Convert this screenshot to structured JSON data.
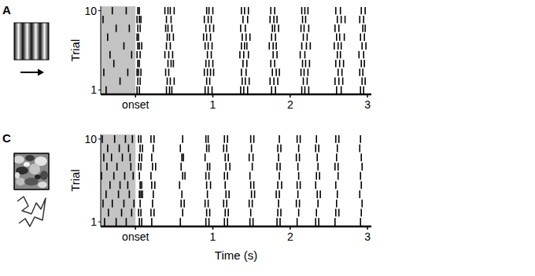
{
  "chart_data": [
    {
      "type": "raster",
      "title": "A",
      "ylabel": "Trial",
      "xlim": [
        -0.45,
        3.05
      ],
      "xticks": [
        {
          "value": 0,
          "label": "onset"
        },
        1,
        2,
        3
      ],
      "ylim": [
        0.5,
        10.5
      ],
      "yticks": [
        1,
        10
      ],
      "baseline_period": [
        -0.45,
        0
      ],
      "color": "#000000",
      "marker": "line",
      "series": [
        {
          "y": 1,
          "x": [
            -0.38,
            0.02,
            0.05,
            0.4,
            0.44,
            0.47,
            0.9,
            0.94,
            0.99,
            1.36,
            1.4,
            1.45,
            1.76,
            1.81,
            2.15,
            2.19,
            2.24,
            2.6,
            2.66,
            2.91,
            2.95
          ]
        },
        {
          "y": 2,
          "x": [
            -0.2,
            0.03,
            0.06,
            0.41,
            0.45,
            0.5,
            0.92,
            0.96,
            1.38,
            1.42,
            1.47,
            1.74,
            1.79,
            1.84,
            2.17,
            2.22,
            2.58,
            2.63,
            2.68,
            2.93,
            2.97
          ]
        },
        {
          "y": 3,
          "x": [
            -0.41,
            -0.1,
            0.02,
            0.04,
            0.07,
            0.39,
            0.43,
            0.89,
            0.93,
            0.97,
            1.01,
            1.37,
            1.43,
            1.77,
            1.82,
            1.86,
            2.14,
            2.18,
            2.23,
            2.62,
            2.67,
            2.9,
            2.94
          ]
        },
        {
          "y": 4,
          "x": [
            -0.28,
            0.03,
            0.05,
            0.42,
            0.46,
            0.49,
            0.91,
            0.95,
            1.0,
            1.39,
            1.44,
            1.75,
            1.8,
            2.16,
            2.2,
            2.25,
            2.59,
            2.64,
            2.69,
            2.92,
            2.96
          ]
        },
        {
          "y": 5,
          "x": [
            -0.33,
            -0.05,
            0.02,
            0.06,
            0.38,
            0.43,
            0.48,
            0.93,
            0.98,
            1.35,
            1.4,
            1.46,
            1.78,
            1.83,
            2.13,
            2.19,
            2.61,
            2.65,
            2.89,
            2.95
          ]
        },
        {
          "y": 6,
          "x": [
            -0.15,
            0.03,
            0.05,
            0.08,
            0.4,
            0.45,
            0.9,
            0.94,
            0.99,
            1.37,
            1.41,
            1.44,
            1.73,
            1.78,
            1.82,
            2.15,
            2.21,
            2.26,
            2.57,
            2.62,
            2.66,
            2.93,
            2.98
          ]
        },
        {
          "y": 7,
          "x": [
            -0.36,
            0.02,
            0.04,
            0.41,
            0.44,
            0.49,
            0.88,
            0.92,
            0.97,
            1.38,
            1.43,
            1.48,
            1.76,
            1.81,
            2.17,
            2.22,
            2.6,
            2.64,
            2.7,
            2.91,
            2.96
          ]
        },
        {
          "y": 8,
          "x": [
            -0.25,
            -0.08,
            0.03,
            0.06,
            0.39,
            0.42,
            0.47,
            0.91,
            0.96,
            1.01,
            1.36,
            1.42,
            1.77,
            1.8,
            1.85,
            2.14,
            2.18,
            2.24,
            2.58,
            2.63,
            2.94,
            2.97
          ]
        },
        {
          "y": 9,
          "x": [
            -0.42,
            0.02,
            0.05,
            0.07,
            0.4,
            0.46,
            0.89,
            0.94,
            0.98,
            1.39,
            1.45,
            1.74,
            1.79,
            1.83,
            2.16,
            2.2,
            2.61,
            2.66,
            2.71,
            2.9,
            2.95
          ]
        },
        {
          "y": 10,
          "x": [
            -0.3,
            -0.12,
            0.03,
            0.05,
            0.38,
            0.42,
            0.45,
            0.5,
            0.92,
            0.95,
            1.0,
            1.37,
            1.41,
            1.46,
            1.75,
            1.8,
            2.15,
            2.19,
            2.23,
            2.59,
            2.65,
            2.92,
            2.97
          ]
        }
      ]
    },
    {
      "type": "raster",
      "title": "C",
      "ylabel": "Trial",
      "xlabel": "Time (s)",
      "xlim": [
        -0.45,
        3.05
      ],
      "xticks": [
        {
          "value": 0,
          "label": "onset"
        },
        1,
        2,
        3
      ],
      "ylim": [
        0.5,
        10.5
      ],
      "yticks": [
        1,
        10
      ],
      "baseline_period": [
        -0.45,
        0
      ],
      "color": "#000000",
      "marker": "line",
      "series": [
        {
          "y": 1,
          "x": [
            -0.4,
            -0.25,
            -0.12,
            0.05,
            0.08,
            0.21,
            0.58,
            0.91,
            0.95,
            1.15,
            1.19,
            1.48,
            1.52,
            1.83,
            1.87,
            2.09,
            2.33,
            2.37,
            2.58,
            2.91
          ]
        },
        {
          "y": 2,
          "x": [
            -0.35,
            -0.18,
            -0.05,
            0.04,
            0.07,
            0.2,
            0.24,
            0.61,
            0.92,
            0.96,
            1.16,
            1.2,
            1.49,
            1.84,
            1.88,
            2.11,
            2.34,
            2.59,
            2.63,
            2.92
          ]
        },
        {
          "y": 3,
          "x": [
            -0.42,
            -0.3,
            -0.15,
            -0.02,
            0.06,
            0.22,
            0.59,
            0.63,
            0.9,
            0.94,
            1.14,
            1.18,
            1.47,
            1.51,
            1.85,
            2.08,
            2.12,
            2.36,
            2.6,
            2.93
          ]
        },
        {
          "y": 4,
          "x": [
            -0.38,
            -0.22,
            -0.08,
            0.05,
            0.07,
            0.09,
            0.23,
            0.6,
            0.93,
            1.17,
            1.21,
            1.5,
            1.54,
            1.82,
            1.86,
            2.1,
            2.35,
            2.39,
            2.61,
            2.9
          ]
        },
        {
          "y": 5,
          "x": [
            -0.33,
            -0.2,
            -0.1,
            0.06,
            0.08,
            0.21,
            0.25,
            0.57,
            0.92,
            0.97,
            1.16,
            1.49,
            1.53,
            1.84,
            1.89,
            2.09,
            2.13,
            2.33,
            2.59,
            2.92
          ]
        },
        {
          "y": 6,
          "x": [
            -0.44,
            -0.28,
            -0.14,
            -0.03,
            0.05,
            0.2,
            0.61,
            0.64,
            0.91,
            0.95,
            1.15,
            1.19,
            1.48,
            1.86,
            2.11,
            2.34,
            2.38,
            2.62,
            2.91
          ]
        },
        {
          "y": 7,
          "x": [
            -0.37,
            -0.24,
            -0.06,
            0.04,
            0.07,
            0.22,
            0.26,
            0.59,
            0.93,
            0.96,
            1.17,
            1.22,
            1.51,
            1.83,
            1.87,
            2.1,
            2.36,
            2.58,
            2.62,
            2.93
          ]
        },
        {
          "y": 8,
          "x": [
            -0.41,
            -0.31,
            -0.17,
            -0.07,
            0.05,
            0.08,
            0.21,
            0.6,
            0.62,
            0.9,
            1.16,
            1.2,
            1.47,
            1.52,
            1.85,
            2.08,
            2.12,
            2.35,
            2.6,
            2.92
          ]
        },
        {
          "y": 9,
          "x": [
            -0.36,
            -0.21,
            -0.09,
            0.06,
            0.09,
            0.23,
            0.58,
            0.92,
            0.95,
            1.14,
            1.18,
            1.5,
            1.84,
            1.88,
            2.11,
            2.33,
            2.37,
            2.61,
            2.9
          ]
        },
        {
          "y": 10,
          "x": [
            -0.43,
            -0.27,
            -0.13,
            -0.04,
            0.04,
            0.07,
            0.2,
            0.24,
            0.61,
            0.91,
            0.94,
            1.15,
            1.19,
            1.49,
            1.53,
            1.86,
            2.09,
            2.13,
            2.34,
            2.59,
            2.63,
            2.91
          ]
        }
      ]
    }
  ]
}
